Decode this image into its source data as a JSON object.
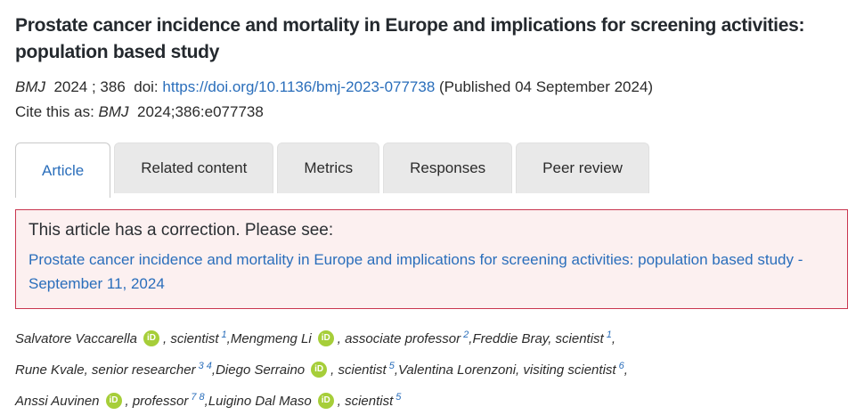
{
  "article": {
    "title": "Prostate cancer incidence and mortality in Europe and implications for screening activities: population based study"
  },
  "citation": {
    "journal": "BMJ",
    "volume_info": "  2024 ; 386  doi: ",
    "doi_link": "https://doi.org/10.1136/bmj-2023-077738",
    "published": " (Published 04 September 2024)",
    "cite_prefix": "Cite this as: ",
    "cite_journal": "BMJ",
    "cite_ref": "  2024;386:e077738"
  },
  "tabs": [
    {
      "label": "Article",
      "active": true
    },
    {
      "label": "Related content",
      "active": false
    },
    {
      "label": "Metrics",
      "active": false
    },
    {
      "label": "Responses",
      "active": false
    },
    {
      "label": "Peer review",
      "active": false
    }
  ],
  "correction": {
    "heading": "This article has a correction. Please see:",
    "link": "Prostate cancer incidence and mortality in Europe and implications for screening activities: population based study - September 11, 2024"
  },
  "authors": {
    "orcid_label": "iD",
    "lines": [
      [
        {
          "name": "Salvatore Vaccarella",
          "orcid": true,
          "role": "scientist",
          "sup": "1"
        },
        {
          "name": "Mengmeng Li",
          "orcid": true,
          "role": "associate professor",
          "sup": "2"
        },
        {
          "name": "Freddie Bray",
          "orcid": false,
          "role": "scientist",
          "sup": "1"
        }
      ],
      [
        {
          "name": "Rune Kvale",
          "orcid": false,
          "role": "senior researcher",
          "sup": "3 4"
        },
        {
          "name": "Diego Serraino",
          "orcid": true,
          "role": "scientist",
          "sup": "5"
        },
        {
          "name": "Valentina Lorenzoni",
          "orcid": false,
          "role": "visiting scientist",
          "sup": "6"
        }
      ],
      [
        {
          "name": "Anssi Auvinen",
          "orcid": true,
          "role": "professor",
          "sup": "7 8"
        },
        {
          "name": "Luigino Dal Maso",
          "orcid": true,
          "role": "scientist",
          "sup": "5"
        }
      ]
    ]
  },
  "colors": {
    "link_blue": "#2a6ebb",
    "orcid_green": "#a6ce39",
    "correction_border": "#c9364f",
    "correction_bg": "#fcf0f0",
    "tab_inactive_bg": "#e9e9e9",
    "title_text": "#24292e",
    "body_text": "#2b2b2b"
  }
}
